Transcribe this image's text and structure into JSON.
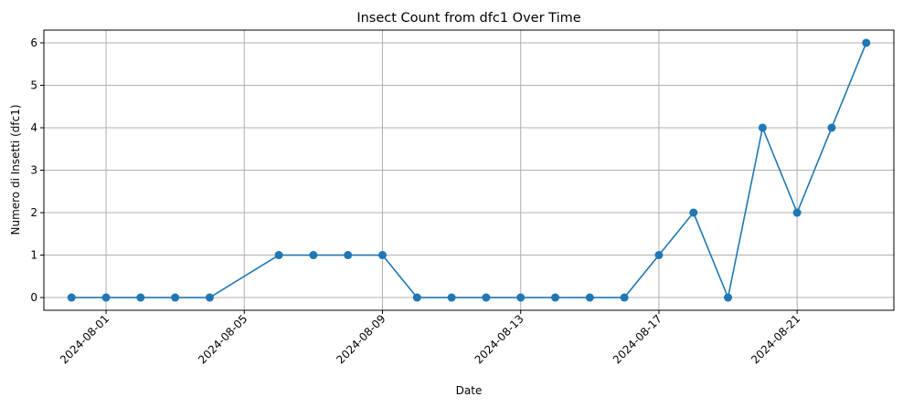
{
  "chart_data": {
    "type": "line",
    "title": "Insect Count from dfc1 Over Time",
    "xlabel": "Date",
    "ylabel": "Numero di Insetti (dfc1)",
    "x_ticks": [
      "2024-08-01",
      "2024-08-05",
      "2024-08-09",
      "2024-08-13",
      "2024-08-17",
      "2024-08-21"
    ],
    "y_ticks": [
      0,
      1,
      2,
      3,
      4,
      5,
      6
    ],
    "ylim": [
      -0.3,
      6.3
    ],
    "xlim": [
      "2024-07-30",
      "2024-08-24"
    ],
    "grid": true,
    "series": [
      {
        "color": "#1f77b4",
        "marker": "circle",
        "x": [
          "2024-07-31",
          "2024-08-01",
          "2024-08-02",
          "2024-08-03",
          "2024-08-04",
          "2024-08-06",
          "2024-08-07",
          "2024-08-08",
          "2024-08-09",
          "2024-08-10",
          "2024-08-11",
          "2024-08-12",
          "2024-08-13",
          "2024-08-14",
          "2024-08-15",
          "2024-08-16",
          "2024-08-17",
          "2024-08-18",
          "2024-08-19",
          "2024-08-20",
          "2024-08-21",
          "2024-08-22",
          "2024-08-23"
        ],
        "values": [
          0,
          0,
          0,
          0,
          0,
          1,
          1,
          1,
          1,
          0,
          0,
          0,
          0,
          0,
          0,
          0,
          1,
          2,
          0,
          4,
          2,
          4,
          6
        ]
      }
    ]
  }
}
